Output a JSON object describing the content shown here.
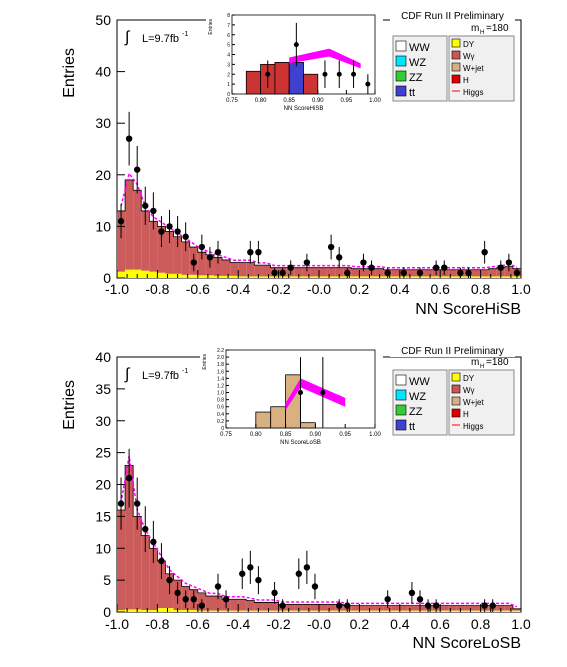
{
  "chart_data": [
    {
      "type": "bar",
      "id": "top",
      "header": "CDF Run II Preliminary",
      "mass_label": "m",
      "mass_sub": "H",
      "mass_value": "=180",
      "lumi_integral": "∫",
      "lumi_text": "L=9.7fb",
      "lumi_sup": "-1",
      "xlabel": "NN ScoreHiSB",
      "ylabel": "Entries",
      "xlim": [
        -1.0,
        1.0
      ],
      "ylim": [
        0,
        50
      ],
      "xticks": [
        "-1.0",
        "-0.8",
        "-0.6",
        "-0.4",
        "-0.2",
        "-0.0",
        "0.2",
        "0.4",
        "0.6",
        "0.8",
        "1.0"
      ],
      "yticks": [
        "0",
        "10",
        "20",
        "30",
        "40",
        "50"
      ],
      "bin_width": 0.04,
      "bin_edges_start": -1.0,
      "stack_total": [
        13,
        19,
        17,
        13,
        11,
        10,
        9,
        8,
        7,
        6,
        5,
        4.5,
        4,
        3.5,
        3,
        3,
        3,
        2.5,
        2.5,
        2,
        2,
        2,
        2,
        2,
        2,
        2,
        2,
        2,
        2,
        1.8,
        1.8,
        1.8,
        1.8,
        1.6,
        1.6,
        1.6,
        1.6,
        1.6,
        1.6,
        1.6,
        1.6,
        1.6,
        1.6,
        1.6,
        1.6,
        1.6,
        1.8,
        2,
        2.2,
        1.8
      ],
      "dy_fraction_level": [
        1.2,
        1.6,
        1.6,
        1.4,
        1.2,
        1.0,
        0.8,
        0.8,
        0.6,
        0.6,
        0.5,
        0.5,
        0.4,
        0.4,
        0.4,
        0.3,
        0.3,
        0.3,
        0.3,
        0.3,
        0.3,
        0.3,
        0.3,
        0.3,
        0.3,
        0.3,
        0.3,
        0.3,
        0.3,
        0.3,
        0.3,
        0.3,
        0.3,
        0.3,
        0.3,
        0.3,
        0.3,
        0.3,
        0.3,
        0.3,
        0.3,
        0.3,
        0.3,
        0.3,
        0.3,
        0.3,
        0.3,
        0.3,
        0.3,
        0.3
      ],
      "data_points": [
        {
          "x": -0.98,
          "y": 11,
          "err": 3.3
        },
        {
          "x": -0.94,
          "y": 27,
          "err": 5.2
        },
        {
          "x": -0.9,
          "y": 21,
          "err": 4.6
        },
        {
          "x": -0.86,
          "y": 14,
          "err": 3.7
        },
        {
          "x": -0.82,
          "y": 13,
          "err": 3.6
        },
        {
          "x": -0.78,
          "y": 9,
          "err": 3.0
        },
        {
          "x": -0.74,
          "y": 10,
          "err": 3.2
        },
        {
          "x": -0.7,
          "y": 9,
          "err": 3.0
        },
        {
          "x": -0.66,
          "y": 8,
          "err": 2.8
        },
        {
          "x": -0.62,
          "y": 3,
          "err": 1.7
        },
        {
          "x": -0.58,
          "y": 6,
          "err": 2.4
        },
        {
          "x": -0.54,
          "y": 4,
          "err": 2.0
        },
        {
          "x": -0.5,
          "y": 5,
          "err": 2.2
        },
        {
          "x": -0.34,
          "y": 5,
          "err": 2.2
        },
        {
          "x": -0.3,
          "y": 5,
          "err": 2.2
        },
        {
          "x": -0.22,
          "y": 1,
          "err": 1.0
        },
        {
          "x": -0.18,
          "y": 1,
          "err": 1.0
        },
        {
          "x": -0.14,
          "y": 2,
          "err": 1.4
        },
        {
          "x": -0.06,
          "y": 3,
          "err": 1.7
        },
        {
          "x": 0.06,
          "y": 6,
          "err": 2.4
        },
        {
          "x": 0.1,
          "y": 4,
          "err": 2.0
        },
        {
          "x": 0.14,
          "y": 1,
          "err": 1.0
        },
        {
          "x": 0.22,
          "y": 3,
          "err": 1.7
        },
        {
          "x": 0.26,
          "y": 2,
          "err": 1.4
        },
        {
          "x": 0.34,
          "y": 1,
          "err": 1.0
        },
        {
          "x": 0.42,
          "y": 1,
          "err": 1.0
        },
        {
          "x": 0.5,
          "y": 1,
          "err": 1.0
        },
        {
          "x": 0.58,
          "y": 2,
          "err": 1.4
        },
        {
          "x": 0.62,
          "y": 2,
          "err": 1.4
        },
        {
          "x": 0.7,
          "y": 1,
          "err": 1.0
        },
        {
          "x": 0.74,
          "y": 1,
          "err": 1.0
        },
        {
          "x": 0.82,
          "y": 5,
          "err": 2.2
        },
        {
          "x": 0.9,
          "y": 2,
          "err": 1.4
        },
        {
          "x": 0.94,
          "y": 3,
          "err": 1.7
        },
        {
          "x": 0.98,
          "y": 1,
          "err": 1.0
        }
      ],
      "inset": {
        "xlabel": "NN ScoreHiSB",
        "ylabel": "Entries",
        "xlim": [
          0.75,
          1.0
        ],
        "ylim": [
          0,
          8
        ],
        "xticks": [
          "0.75",
          "0.80",
          "0.85",
          "0.90",
          "0.95",
          "1.00"
        ],
        "yticks": [
          "0",
          "1",
          "2",
          "3",
          "4",
          "5",
          "6",
          "7",
          "8"
        ],
        "stack_total": [
          0,
          2.3,
          3.0,
          3.2,
          3.2,
          2.0
        ],
        "bin_start": 0.75,
        "bin_width": 0.025,
        "points": [
          {
            "x": 0.8125,
            "y": 2,
            "err": 1.4
          },
          {
            "x": 0.8625,
            "y": 5,
            "err": 2.2
          },
          {
            "x": 0.9125,
            "y": 2,
            "err": 1.4
          },
          {
            "x": 0.9375,
            "y": 2,
            "err": 1.4
          },
          {
            "x": 0.9625,
            "y": 2,
            "err": 1.4
          },
          {
            "x": 0.9875,
            "y": 1,
            "err": 1.0
          }
        ],
        "higgs_band": [
          {
            "x": 0.85,
            "lo": 3.1,
            "hi": 3.7
          },
          {
            "x": 0.92,
            "lo": 3.8,
            "hi": 4.6
          },
          {
            "x": 0.975,
            "lo": 2.6,
            "hi": 3.1
          }
        ]
      }
    },
    {
      "type": "bar",
      "id": "bottom",
      "header": "CDF Run II Preliminary",
      "mass_label": "m",
      "mass_sub": "H",
      "mass_value": "=180",
      "lumi_integral": "∫",
      "lumi_text": "L=9.7fb",
      "lumi_sup": "-1",
      "xlabel": "NN ScoreLoSB",
      "ylabel": "Entries",
      "xlim": [
        -1.0,
        1.0
      ],
      "ylim": [
        0,
        40
      ],
      "xticks": [
        "-1.0",
        "-0.8",
        "-0.6",
        "-0.4",
        "-0.2",
        "-0.0",
        "0.2",
        "0.4",
        "0.6",
        "0.8",
        "1.0"
      ],
      "yticks": [
        "0",
        "5",
        "10",
        "15",
        "20",
        "25",
        "30",
        "35",
        "40"
      ],
      "bin_width": 0.04,
      "bin_edges_start": -1.0,
      "stack_total": [
        16,
        23,
        15,
        12,
        10,
        8,
        6,
        5,
        4,
        3.5,
        3,
        2.5,
        2.5,
        2,
        2,
        2,
        1.8,
        1.5,
        1.5,
        1.5,
        1.2,
        1.2,
        1.2,
        1.2,
        1.2,
        1.2,
        1.2,
        1.2,
        1,
        1,
        1,
        1,
        1,
        1,
        1,
        1,
        1,
        1,
        1,
        1,
        1,
        1,
        1,
        1,
        1,
        1,
        1,
        1,
        1,
        0.5
      ],
      "dy_fraction_level": [
        0.3,
        0.4,
        0.4,
        0.3,
        0.3,
        0.6,
        0.6,
        0.3,
        0.3,
        0.3,
        0.2,
        0.2,
        0.2,
        0.2,
        0.2,
        0.2,
        0.2,
        0.2,
        0.2,
        0.2,
        0.2,
        0.2,
        0.2,
        0.2,
        0.2,
        0.2,
        0.2,
        0.2,
        0.2,
        0.2,
        0.2,
        0.2,
        0.2,
        0.2,
        0.2,
        0.2,
        0.2,
        0.2,
        0.2,
        0.2,
        0.2,
        0.2,
        0.2,
        0.2,
        0.2,
        0.2,
        0.2,
        0.2,
        0.2,
        0.2
      ],
      "data_points": [
        {
          "x": -0.98,
          "y": 17,
          "err": 4.1
        },
        {
          "x": -0.94,
          "y": 21,
          "err": 4.6
        },
        {
          "x": -0.9,
          "y": 17,
          "err": 4.1
        },
        {
          "x": -0.86,
          "y": 13,
          "err": 3.6
        },
        {
          "x": -0.82,
          "y": 11,
          "err": 3.3
        },
        {
          "x": -0.78,
          "y": 8,
          "err": 2.8
        },
        {
          "x": -0.74,
          "y": 5,
          "err": 2.2
        },
        {
          "x": -0.7,
          "y": 3,
          "err": 1.7
        },
        {
          "x": -0.66,
          "y": 2,
          "err": 1.4
        },
        {
          "x": -0.62,
          "y": 2,
          "err": 1.4
        },
        {
          "x": -0.58,
          "y": 1,
          "err": 1.0
        },
        {
          "x": -0.5,
          "y": 4,
          "err": 2.0
        },
        {
          "x": -0.46,
          "y": 2,
          "err": 1.4
        },
        {
          "x": -0.38,
          "y": 6,
          "err": 2.4
        },
        {
          "x": -0.34,
          "y": 7,
          "err": 2.6
        },
        {
          "x": -0.3,
          "y": 5,
          "err": 2.2
        },
        {
          "x": -0.22,
          "y": 3,
          "err": 1.7
        },
        {
          "x": -0.18,
          "y": 1,
          "err": 1.0
        },
        {
          "x": -0.1,
          "y": 6,
          "err": 2.4
        },
        {
          "x": -0.06,
          "y": 7,
          "err": 2.6
        },
        {
          "x": -0.02,
          "y": 4,
          "err": 2.0
        },
        {
          "x": 0.1,
          "y": 1,
          "err": 1.0
        },
        {
          "x": 0.14,
          "y": 1,
          "err": 1.0
        },
        {
          "x": 0.34,
          "y": 2,
          "err": 1.4
        },
        {
          "x": 0.46,
          "y": 3,
          "err": 1.7
        },
        {
          "x": 0.5,
          "y": 2,
          "err": 1.4
        },
        {
          "x": 0.54,
          "y": 1,
          "err": 1.0
        },
        {
          "x": 0.58,
          "y": 1,
          "err": 1.0
        },
        {
          "x": 0.82,
          "y": 1,
          "err": 1.0
        },
        {
          "x": 0.86,
          "y": 1,
          "err": 1.0
        }
      ],
      "inset": {
        "xlabel": "NN ScoreLoSB",
        "ylabel": "Entries",
        "xlim": [
          0.75,
          1.0
        ],
        "ylim": [
          0,
          2.2
        ],
        "xticks": [
          "0.75",
          "0.80",
          "0.85",
          "0.90",
          "0.95",
          "1.00"
        ],
        "yticks": [
          "0",
          "0.2",
          "0.4",
          "0.6",
          "0.8",
          "1.0",
          "1.2",
          "1.4",
          "1.6",
          "1.8",
          "2.0",
          "2.2"
        ],
        "stack_total": [
          0,
          0,
          0.45,
          0.6,
          1.5,
          0.15,
          0
        ],
        "bin_start": 0.75,
        "bin_width": 0.025,
        "points": [
          {
            "x": 0.875,
            "y": 1.0,
            "err": 1.0
          },
          {
            "x": 0.9125,
            "y": 1.0,
            "err": 1.0
          }
        ],
        "higgs_band": [
          {
            "x": 0.85,
            "lo": 0.5,
            "hi": 0.7
          },
          {
            "x": 0.875,
            "lo": 1.15,
            "hi": 1.4
          },
          {
            "x": 0.95,
            "lo": 0.6,
            "hi": 0.85
          }
        ]
      }
    }
  ],
  "legend": {
    "left": [
      {
        "label": "WW",
        "color": "#ffffff"
      },
      {
        "label": "WZ",
        "color": "#00e5ff"
      },
      {
        "label": "ZZ",
        "color": "#33cc33"
      },
      {
        "label": "tt",
        "color": "#4040d0"
      }
    ],
    "right": [
      {
        "label": "DY",
        "color": "#ffff00"
      },
      {
        "label": "Wγ",
        "color": "#cc5555"
      },
      {
        "label": "W+jet",
        "color": "#d9ae86"
      },
      {
        "label": "H",
        "color": "#e00000"
      },
      {
        "label": "Higgs",
        "color": "#ff0000",
        "line": true
      }
    ]
  },
  "colors": {
    "w_gamma": "#cc5c5c",
    "dy": "#ffff00",
    "w_jet": "#d9b080",
    "higgs": "#ff00ff",
    "data": "#000000"
  }
}
